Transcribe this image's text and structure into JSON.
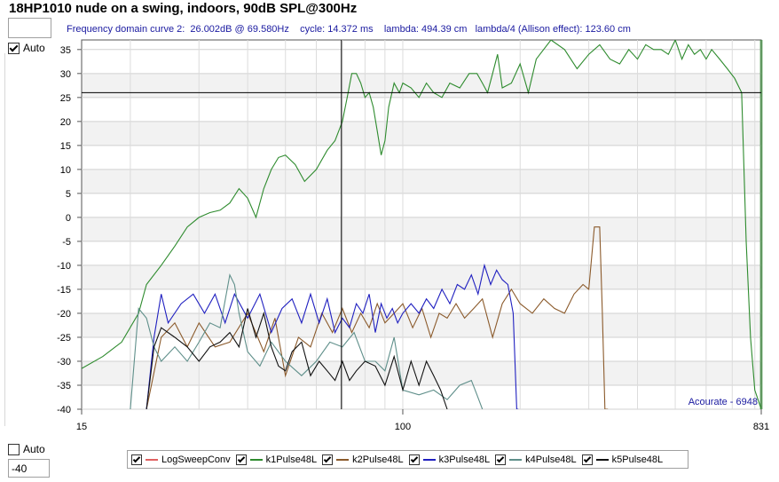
{
  "title": "18HP1010 nude on a swing, indoors, 90dB SPL@300Hz",
  "controls": {
    "auto_top_label": "Auto",
    "auto_bottom_label": "Auto",
    "min_value": "-40"
  },
  "cursor_info": "Frequency domain curve 2:  26.002dB @ 69.580Hz    cycle: 14.372 ms    lambda: 494.39 cm   lambda/4 (Allison effect): 123.60 cm",
  "watermark": "Acourate - 6948",
  "colors": {
    "k1": "#2e8b2e",
    "k2": "#8b5a2b",
    "k3": "#2020c0",
    "k4": "#5f8f8a",
    "k5": "#111111",
    "logsweep": "#e06060",
    "cursor": "#000000"
  },
  "chart_data": {
    "type": "line",
    "title": "18HP1010 nude on a swing, indoors, 90dB SPL@300Hz",
    "x_scale": "log",
    "xlim": [
      15,
      831
    ],
    "ylim": [
      -40,
      37
    ],
    "x_ticks": [
      "15",
      "100",
      "831"
    ],
    "y_ticks": [
      35,
      30,
      25,
      20,
      15,
      10,
      5,
      0,
      -5,
      -10,
      -15,
      -20,
      -25,
      -30,
      -35,
      -40
    ],
    "grid": true,
    "legend_position": "bottom",
    "cursor": {
      "x": 69.58,
      "y": 26.0
    },
    "series": [
      {
        "name": "LogSweepConv",
        "color": "#e06060",
        "x": [],
        "y": []
      },
      {
        "name": "k1Pulse48L",
        "color": "#2e8b2e",
        "x": [
          15,
          17,
          19,
          21,
          22,
          24,
          26,
          28,
          30,
          32,
          34,
          36,
          38,
          40,
          42,
          44,
          46,
          48,
          50,
          53,
          56,
          60,
          64,
          67,
          70,
          72,
          74,
          76,
          78,
          80,
          82,
          84,
          86,
          88,
          90,
          92,
          95,
          98,
          100,
          105,
          110,
          115,
          120,
          126,
          132,
          140,
          148,
          155,
          160,
          165,
          170,
          175,
          180,
          190,
          200,
          210,
          220,
          240,
          260,
          280,
          300,
          320,
          340,
          360,
          380,
          400,
          420,
          440,
          460,
          480,
          500,
          520,
          540,
          560,
          580,
          600,
          620,
          650,
          680,
          710,
          740,
          760,
          780,
          800,
          831
        ],
        "y": [
          -31.5,
          -29,
          -26,
          -20,
          -14,
          -10,
          -6,
          -2,
          0,
          1,
          1.5,
          3,
          6,
          4,
          0,
          6,
          10,
          12.5,
          13,
          11,
          7.5,
          10,
          14,
          16,
          20,
          25,
          30,
          30,
          28,
          25,
          26,
          23,
          18,
          13,
          16,
          23,
          28,
          26,
          28,
          27,
          25,
          28,
          26,
          25,
          28,
          27,
          30,
          30,
          28,
          26,
          30,
          34,
          27,
          28,
          32,
          26,
          33,
          37,
          35,
          31,
          34,
          36,
          33,
          32,
          35,
          33,
          36,
          35,
          35,
          34,
          37,
          33,
          36,
          34,
          35,
          33,
          35,
          33,
          31,
          29,
          26,
          -5,
          -25,
          -36,
          -40
        ]
      },
      {
        "name": "k2Pulse48L",
        "color": "#8b5a2b",
        "x": [
          22,
          24,
          26,
          28,
          30,
          33,
          36,
          40,
          44,
          47,
          50,
          54,
          58,
          62,
          66,
          70,
          74,
          78,
          82,
          86,
          90,
          95,
          100,
          106,
          112,
          118,
          124,
          130,
          137,
          144,
          152,
          160,
          170,
          180,
          190,
          200,
          215,
          230,
          245,
          260,
          275,
          290,
          300,
          310,
          320,
          325,
          330,
          332,
          334,
          336
        ],
        "y": [
          -40,
          -25,
          -22,
          -27,
          -22,
          -27,
          -26,
          -20,
          -28,
          -21,
          -33,
          -25,
          -27,
          -20,
          -24,
          -19,
          -24,
          -20,
          -23,
          -18,
          -22,
          -20,
          -18,
          -23,
          -19,
          -25,
          -20,
          -21,
          -18,
          -21,
          -19,
          -17,
          -25,
          -18,
          -15,
          -18,
          -20,
          -17,
          -19,
          -20,
          -16,
          -14,
          -15,
          -2,
          -2,
          -20,
          -40,
          -40,
          -40,
          -40
        ]
      },
      {
        "name": "k3Pulse48L",
        "color": "#2020c0",
        "x": [
          22,
          23,
          24,
          25,
          27,
          29,
          31,
          33,
          35,
          37,
          40,
          43,
          46,
          49,
          52,
          55,
          58,
          61,
          64,
          67,
          70,
          73,
          76,
          79,
          82,
          85,
          88,
          91,
          94,
          97,
          100,
          105,
          110,
          115,
          120,
          126,
          132,
          138,
          144,
          150,
          156,
          162,
          168,
          174,
          180,
          186,
          192,
          196,
          198
        ],
        "y": [
          -40,
          -25,
          -16,
          -22,
          -18,
          -16,
          -20,
          -16,
          -22,
          -16,
          -21,
          -16,
          -24,
          -19,
          -17,
          -22,
          -16,
          -22,
          -17,
          -24,
          -21,
          -23,
          -18,
          -20,
          -16,
          -24,
          -18,
          -21,
          -19,
          -22,
          -20,
          -18,
          -20,
          -17,
          -19,
          -15,
          -18,
          -14,
          -15,
          -12,
          -16,
          -10,
          -14,
          -11,
          -13,
          -14,
          -20,
          -40,
          -40
        ]
      },
      {
        "name": "k4Pulse48L",
        "color": "#5f8f8a",
        "x": [
          20,
          21,
          22,
          23,
          24,
          26,
          28,
          30,
          32,
          34,
          36,
          37,
          38,
          40,
          43,
          46,
          50,
          55,
          60,
          65,
          70,
          75,
          80,
          85,
          90,
          95,
          100,
          110,
          120,
          130,
          140,
          150,
          155,
          160
        ],
        "y": [
          -40,
          -19,
          -21,
          -27,
          -30,
          -27,
          -30,
          -26,
          -22,
          -23,
          -12,
          -14,
          -20,
          -28,
          -31,
          -26,
          -30,
          -33,
          -30,
          -26,
          -27,
          -24,
          -30,
          -30,
          -32,
          -25,
          -36,
          -37,
          -36,
          -38,
          -35,
          -34,
          -37,
          -40
        ]
      },
      {
        "name": "k5Pulse48L",
        "color": "#111111",
        "x": [
          22,
          23,
          24,
          26,
          28,
          30,
          32,
          34,
          36,
          38,
          40,
          42,
          44,
          46,
          48,
          50,
          52,
          55,
          58,
          61,
          64,
          67,
          70,
          73,
          76,
          80,
          85,
          90,
          95,
          100,
          105,
          110,
          115,
          120,
          125,
          130
        ],
        "y": [
          -40,
          -27,
          -23,
          -25,
          -27,
          -30,
          -27,
          -26,
          -24,
          -27,
          -19,
          -25,
          -20,
          -27,
          -31,
          -32,
          -28,
          -26,
          -33,
          -30,
          -32,
          -34,
          -30,
          -34,
          -32,
          -30,
          -31,
          -35,
          -29,
          -36,
          -30,
          -35,
          -30,
          -33,
          -36,
          -40
        ]
      }
    ]
  }
}
